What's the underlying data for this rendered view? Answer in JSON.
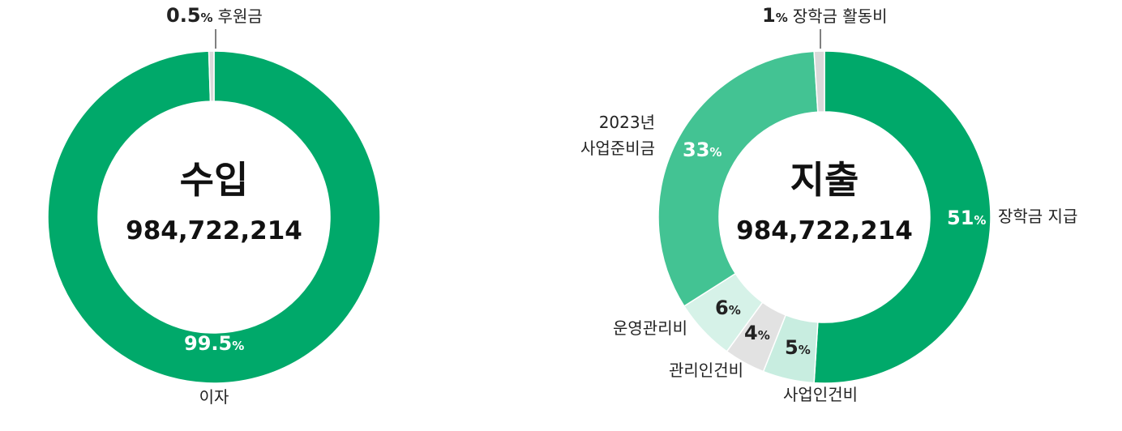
{
  "chart_data": [
    {
      "type": "donut",
      "center_title": "수입",
      "center_value": "984,722,214",
      "slices": [
        {
          "name": "후원금",
          "percent": 0.5,
          "pct_text": "0.5",
          "color": "#d9d9d9"
        },
        {
          "name": "이자",
          "percent": 99.5,
          "pct_text": "99.5",
          "color": "#00a96a"
        }
      ]
    },
    {
      "type": "donut",
      "center_title": "지출",
      "center_value": "984,722,214",
      "slices": [
        {
          "name": "장학금 지급",
          "percent": 51,
          "pct_text": "51",
          "color": "#00a96a"
        },
        {
          "name": "사업인건비",
          "percent": 5,
          "pct_text": "5",
          "color": "#c8ede0"
        },
        {
          "name": "관리인건비",
          "percent": 4,
          "pct_text": "4",
          "color": "#e2e2e2"
        },
        {
          "name": "운영관리비",
          "percent": 6,
          "pct_text": "6",
          "color": "#d6f2e8"
        },
        {
          "name": "2023년 사업준비금",
          "name_lines": [
            "2023년",
            "사업준비금"
          ],
          "percent": 33,
          "pct_text": "33",
          "color": "#43c393"
        },
        {
          "name": "장학금 활동비",
          "percent": 1,
          "pct_text": "1",
          "color": "#d9d9d9"
        }
      ]
    }
  ],
  "percent_sign": "%"
}
